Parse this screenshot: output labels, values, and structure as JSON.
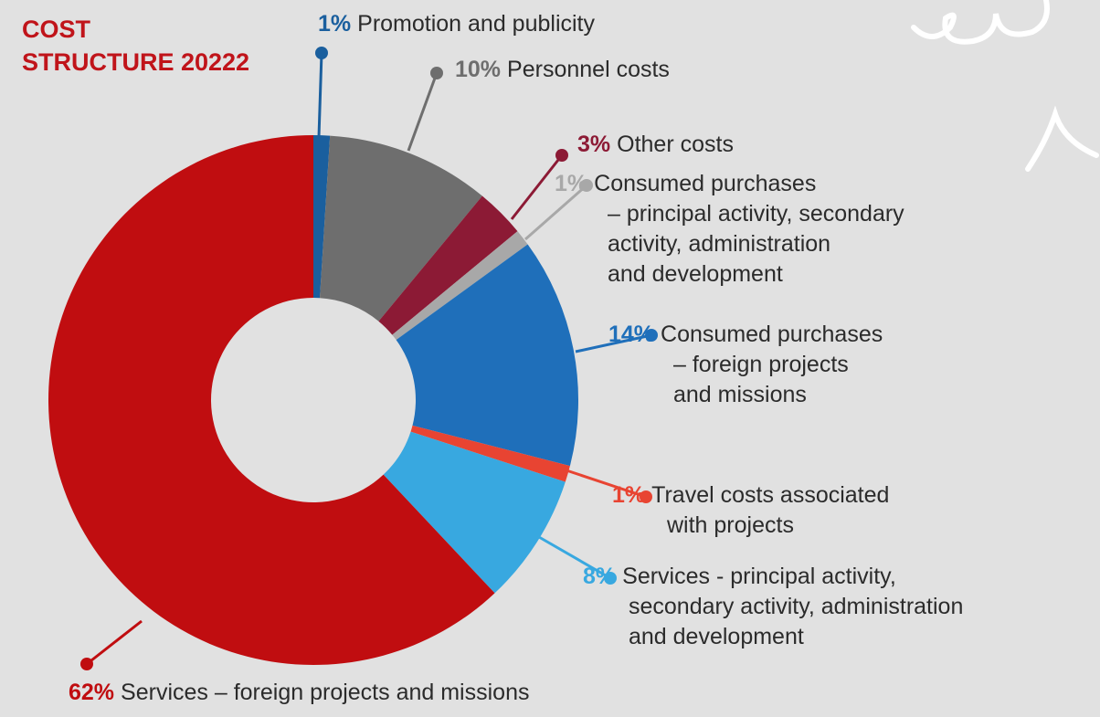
{
  "chart_data": {
    "type": "pie",
    "donut": true,
    "title": "COST\nSTRUCTURE 20222",
    "categories": [
      "Promotion and publicity",
      "Personnel costs",
      "Other costs",
      "Consumed purchases\n– principal activity, secondary\nactivity, administration\nand development",
      "Consumed purchases\n– foreign projects\nand missions",
      "Travel costs associated\nwith projects",
      "Services - principal activity,\nsecondary activity, administration\nand development",
      "Services – foreign projects and missions"
    ],
    "values": [
      1,
      10,
      3,
      1,
      14,
      1,
      8,
      62
    ],
    "value_labels": [
      "1%",
      "10%",
      "3%",
      "1%",
      "14%",
      "1%",
      "8%",
      "62%"
    ],
    "colors": [
      "#1a5f9e",
      "#6e6e6e",
      "#8c1a35",
      "#a8a8a8",
      "#1f6fba",
      "#e84432",
      "#38a8e0",
      "#c00d10"
    ]
  }
}
